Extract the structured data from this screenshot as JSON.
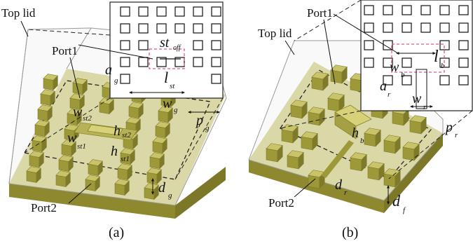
{
  "panel_a": {
    "caption": "(a)",
    "top_lid": "Top lid",
    "port1": "Port1",
    "port2": "Port2",
    "inset_labels": {
      "st": "st",
      "st_sub": "off",
      "a": "a",
      "a_sub": "g",
      "l": "l",
      "l_sub": "st"
    },
    "labels": {
      "w_st2": "w",
      "w_st2_sub": "st2",
      "w_st1": "w",
      "w_st1_sub": "st1",
      "h_st2": "h",
      "h_st2_sub": "st2",
      "h_st1": "h",
      "h_st1_sub": "st1",
      "w_g": "w",
      "w_g_sub": "g",
      "p_g": "p",
      "p_g_sub": "g",
      "d_g": "d",
      "d_g_sub": "g"
    }
  },
  "panel_b": {
    "caption": "(b)",
    "top_lid": "Top lid",
    "port1": "Port1",
    "port2": "Port2",
    "inset_labels": {
      "l": "l",
      "l_sub": "b",
      "w": "w",
      "w_sub": "b",
      "a": "a",
      "a_sub": "r",
      "w2": "w",
      "w2_sub": "r"
    },
    "labels": {
      "h": "h",
      "h_sub": "b",
      "d_r": "d",
      "d_r_sub": "r",
      "d_f": "d",
      "d_f_sub": "f",
      "p_r": "p",
      "p_r_sub": "r"
    }
  },
  "colors": {
    "gold_top": "#c9c46a",
    "gold_side": "#9d9838",
    "gold_dark": "#7f7a2a",
    "highlight": "#e05a7a"
  }
}
